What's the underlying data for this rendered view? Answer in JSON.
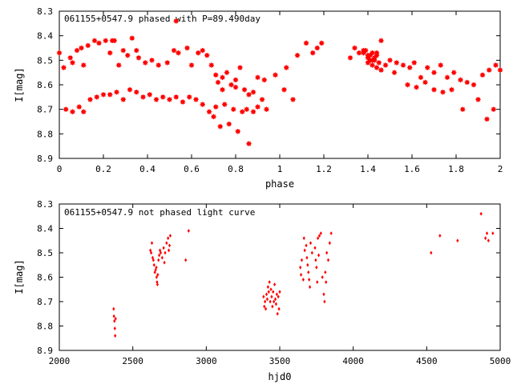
{
  "colors": {
    "points": "#ff0000",
    "frame": "#000000",
    "background": "#ffffff"
  },
  "chart_data": [
    {
      "type": "scatter",
      "title": "061155+0547.9 phased with P=89.490day",
      "xlabel": "phase",
      "ylabel": "I[mag]",
      "xlim": [
        0,
        2
      ],
      "ylim": [
        8.3,
        8.9
      ],
      "y_inverted": true,
      "x_ticks": [
        "0",
        "0.2",
        "0.4",
        "0.6",
        "0.8",
        "1",
        "1.2",
        "1.4",
        "1.6",
        "1.8",
        "2"
      ],
      "y_ticks": [
        "8.3",
        "8.4",
        "8.5",
        "8.6",
        "8.7",
        "8.8",
        "8.9"
      ],
      "grid": false,
      "marker": "star",
      "series": [
        {
          "x": [
            0.0,
            0.02,
            0.05,
            0.06,
            0.08,
            0.1,
            0.11,
            0.13,
            0.16,
            0.18,
            0.21,
            0.23,
            0.24,
            0.25,
            0.27,
            0.29,
            0.31,
            0.33,
            0.35,
            0.36,
            0.39,
            0.42,
            0.45,
            0.49,
            0.52,
            0.54,
            0.58,
            0.6,
            0.63,
            0.65,
            0.67,
            0.69,
            0.71,
            0.72,
            0.74,
            0.76,
            0.78,
            0.8,
            0.82,
            0.84,
            0.88,
            0.9,
            0.93,
            0.98,
            1.03,
            1.08,
            1.12,
            1.15,
            1.17,
            1.19,
            1.32,
            1.34,
            1.36,
            1.38,
            1.4,
            1.42,
            1.44,
            1.46,
            1.48,
            1.5,
            1.53,
            1.56,
            1.59,
            1.61,
            1.64,
            1.67,
            1.7,
            1.73,
            1.76,
            1.79,
            1.82,
            1.85,
            1.88,
            1.92,
            1.95,
            1.98,
            2.0,
            0.03,
            0.06,
            0.09,
            0.11,
            0.14,
            0.17,
            0.2,
            0.23,
            0.26,
            0.29,
            0.32,
            0.35,
            0.38,
            0.41,
            0.44,
            0.47,
            0.5,
            0.53,
            0.56,
            0.59,
            0.62,
            0.65,
            0.68,
            0.7,
            0.71,
            0.73,
            0.75,
            0.77,
            0.79,
            0.81,
            0.83,
            0.85,
            0.86,
            0.88,
            0.9,
            0.92,
            0.94,
            1.02,
            1.06,
            1.38,
            1.4,
            1.41,
            1.42,
            1.43,
            1.44,
            1.45,
            1.39,
            1.41,
            1.42,
            1.43,
            1.4,
            1.44,
            1.46,
            1.52,
            1.58,
            1.62,
            1.66,
            1.7,
            1.74,
            1.78,
            1.83,
            1.9,
            1.94,
            1.97,
            0.53,
            0.74,
            0.8,
            0.86
          ],
          "y": [
            8.47,
            8.53,
            8.49,
            8.51,
            8.46,
            8.45,
            8.52,
            8.44,
            8.42,
            8.43,
            8.42,
            8.47,
            8.42,
            8.42,
            8.52,
            8.46,
            8.48,
            8.41,
            8.46,
            8.49,
            8.51,
            8.5,
            8.52,
            8.51,
            8.46,
            8.47,
            8.45,
            8.52,
            8.47,
            8.46,
            8.48,
            8.52,
            8.56,
            8.59,
            8.57,
            8.55,
            8.6,
            8.61,
            8.53,
            8.62,
            8.63,
            8.57,
            8.58,
            8.56,
            8.53,
            8.48,
            8.43,
            8.47,
            8.45,
            8.43,
            8.49,
            8.45,
            8.47,
            8.46,
            8.48,
            8.5,
            8.47,
            8.42,
            8.52,
            8.5,
            8.51,
            8.52,
            8.53,
            8.51,
            8.57,
            8.53,
            8.55,
            8.52,
            8.57,
            8.55,
            8.58,
            8.59,
            8.6,
            8.56,
            8.54,
            8.52,
            8.54,
            8.7,
            8.71,
            8.69,
            8.71,
            8.66,
            8.65,
            8.64,
            8.64,
            8.63,
            8.66,
            8.62,
            8.63,
            8.65,
            8.64,
            8.66,
            8.65,
            8.66,
            8.65,
            8.67,
            8.65,
            8.66,
            8.68,
            8.71,
            8.73,
            8.69,
            8.77,
            8.68,
            8.76,
            8.7,
            8.79,
            8.71,
            8.7,
            8.84,
            8.71,
            8.69,
            8.66,
            8.7,
            8.62,
            8.66,
            8.47,
            8.49,
            8.5,
            8.52,
            8.5,
            8.53,
            8.51,
            8.46,
            8.48,
            8.47,
            8.49,
            8.51,
            8.48,
            8.54,
            8.55,
            8.6,
            8.61,
            8.59,
            8.62,
            8.63,
            8.62,
            8.7,
            8.66,
            8.74,
            8.7,
            8.34,
            8.62,
            8.58,
            8.64
          ]
        }
      ]
    },
    {
      "type": "scatter",
      "title": "061155+0547.9 not phased light curve",
      "xlabel": "hjd0",
      "ylabel": "I[mag]",
      "xlim": [
        2000,
        5000
      ],
      "ylim": [
        8.3,
        8.9
      ],
      "y_inverted": true,
      "x_ticks": [
        "2000",
        "2500",
        "3000",
        "3500",
        "4000",
        "4500",
        "5000"
      ],
      "y_ticks": [
        "8.3",
        "8.4",
        "8.5",
        "8.6",
        "8.7",
        "8.8",
        "8.9"
      ],
      "grid": false,
      "marker": "diamond",
      "series": [
        {
          "x": [
            2370,
            2372,
            2375,
            2378,
            2380,
            2383,
            2620,
            2625,
            2630,
            2635,
            2640,
            2645,
            2650,
            2655,
            2660,
            2662,
            2665,
            2668,
            2670,
            2675,
            2680,
            2685,
            2690,
            2700,
            2710,
            2715,
            2720,
            2730,
            2740,
            2745,
            2750,
            2755,
            2860,
            2880,
            3390,
            3395,
            3400,
            3405,
            3410,
            3415,
            3420,
            3425,
            3430,
            3435,
            3440,
            3445,
            3450,
            3455,
            3460,
            3465,
            3470,
            3475,
            3480,
            3485,
            3490,
            3495,
            3500,
            3640,
            3645,
            3650,
            3660,
            3665,
            3670,
            3680,
            3685,
            3690,
            3695,
            3700,
            3705,
            3710,
            3720,
            3740,
            3745,
            3750,
            3755,
            3760,
            3765,
            3770,
            3780,
            3790,
            3800,
            3805,
            3810,
            3815,
            3820,
            3830,
            3840,
            3850,
            4530,
            4590,
            4710,
            4870,
            4900,
            4910,
            4920,
            4950
          ],
          "y": [
            8.73,
            8.76,
            8.78,
            8.81,
            8.84,
            8.77,
            8.49,
            8.5,
            8.46,
            8.52,
            8.53,
            8.55,
            8.58,
            8.57,
            8.56,
            8.6,
            8.62,
            8.63,
            8.59,
            8.53,
            8.51,
            8.49,
            8.5,
            8.52,
            8.48,
            8.54,
            8.5,
            8.46,
            8.44,
            8.49,
            8.47,
            8.43,
            8.53,
            8.41,
            8.68,
            8.72,
            8.7,
            8.73,
            8.67,
            8.69,
            8.64,
            8.66,
            8.62,
            8.7,
            8.65,
            8.68,
            8.72,
            8.66,
            8.7,
            8.63,
            8.69,
            8.71,
            8.67,
            8.75,
            8.68,
            8.73,
            8.66,
            8.56,
            8.59,
            8.53,
            8.61,
            8.44,
            8.49,
            8.47,
            8.52,
            8.55,
            8.58,
            8.61,
            8.64,
            8.46,
            8.5,
            8.48,
            8.53,
            8.56,
            8.62,
            8.44,
            8.51,
            8.43,
            8.42,
            8.6,
            8.67,
            8.7,
            8.58,
            8.62,
            8.5,
            8.53,
            8.46,
            8.42,
            8.5,
            8.43,
            8.45,
            8.34,
            8.44,
            8.42,
            8.45,
            8.42
          ]
        }
      ]
    }
  ]
}
